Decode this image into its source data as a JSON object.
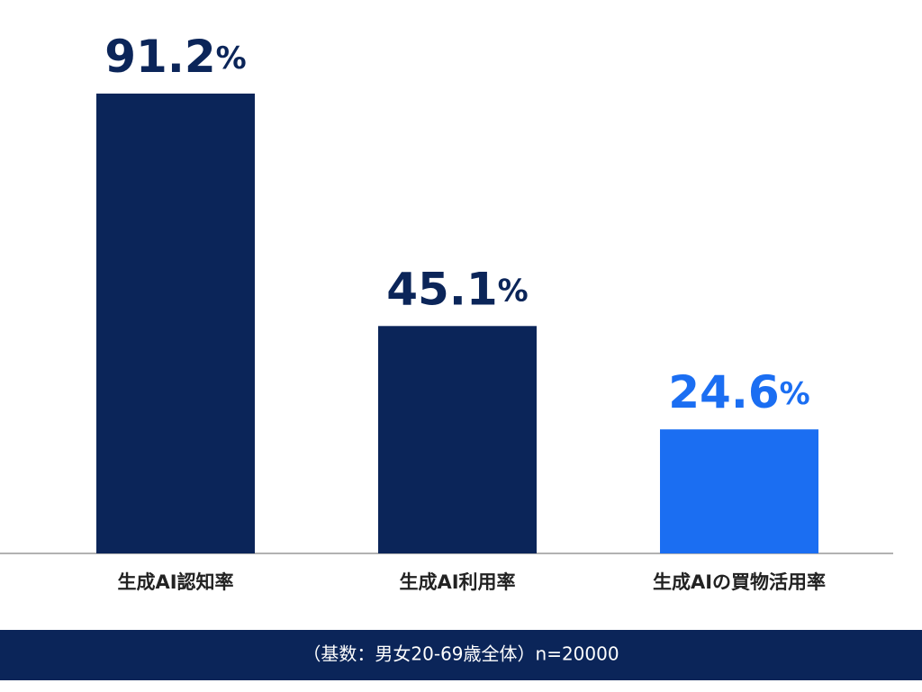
{
  "chart_data": {
    "type": "bar",
    "categories": [
      "生成AI認知率",
      "生成AI利用率",
      "生成AIの買物活用率"
    ],
    "values": [
      91.2,
      45.1,
      24.6
    ],
    "value_labels": [
      "91.2%",
      "45.1%",
      "24.6%"
    ],
    "colors": [
      "#0b2559",
      "#0b2559",
      "#1b6ef2"
    ],
    "footnote": "（基数：男女20-69歳全体）n=20000"
  }
}
